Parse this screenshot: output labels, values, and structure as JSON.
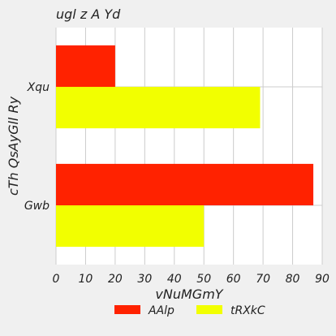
{
  "chart_data": {
    "type": "bar",
    "orientation": "horizontal",
    "title": "ugl z A Yd",
    "xlabel": "vNuMGmY",
    "ylabel": "cTh QsAyGll Ry",
    "categories": [
      "Xqu",
      "Gwb"
    ],
    "series": [
      {
        "name": "AAlp",
        "color": "#ff2200",
        "values": [
          20,
          87
        ]
      },
      {
        "name": "tRXkC",
        "color": "#f2ff00",
        "values": [
          69,
          50
        ]
      }
    ],
    "xlim": [
      0,
      90
    ],
    "xticks": [
      "0",
      "10",
      "20",
      "30",
      "40",
      "50",
      "60",
      "70",
      "80",
      "90"
    ],
    "grid": true,
    "legend_position": "bottom"
  }
}
